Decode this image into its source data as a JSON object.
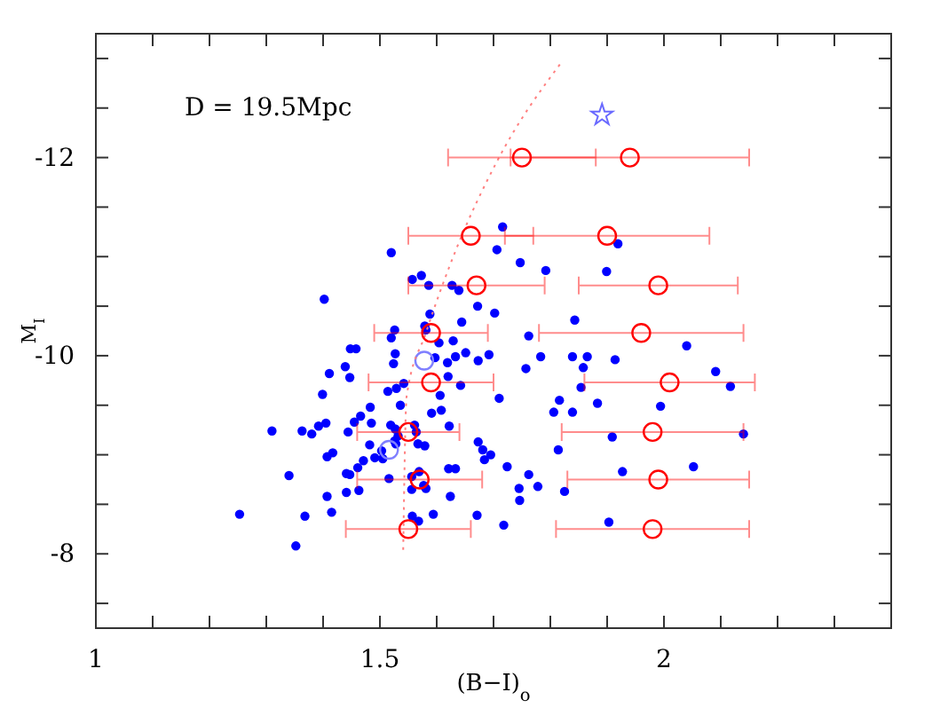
{
  "chart_data": {
    "type": "scatter",
    "xlabel": "(B−I)$_{o}$",
    "ylabel": "M$_{I}$",
    "annotations": [
      "D = 19.5Mpc"
    ],
    "xlim": [
      1,
      2.4
    ],
    "ylim": [
      -7.25,
      -13.25
    ],
    "xticks": [
      1,
      {
        "value": 1.1,
        "label": null
      },
      {
        "value": 1.2,
        "label": null
      },
      {
        "value": 1.3,
        "label": null
      },
      {
        "value": 1.4,
        "label": null
      },
      1.5,
      {
        "value": 1.6,
        "label": null
      },
      {
        "value": 1.7,
        "label": null
      },
      {
        "value": 1.8,
        "label": null
      },
      {
        "value": 1.9,
        "label": null
      },
      2,
      {
        "value": 2.1,
        "label": null
      },
      {
        "value": 2.2,
        "label": null
      },
      {
        "value": 2.3,
        "label": null
      }
    ],
    "yticks": [
      {
        "value": -7.5,
        "label": null
      },
      -8,
      {
        "value": -8.5,
        "label": null
      },
      {
        "value": -9,
        "label": null
      },
      {
        "value": -9.5,
        "label": null
      },
      -10,
      {
        "value": -10.5,
        "label": null
      },
      {
        "value": -11,
        "label": null
      },
      {
        "value": -11.5,
        "label": null
      },
      -12,
      {
        "value": -12.5,
        "label": null
      },
      {
        "value": -13,
        "label": null
      }
    ],
    "grid": false,
    "series": [
      {
        "marker": "circle",
        "color": "#0000ff",
        "x": [
          1.52,
          1.557,
          1.573,
          1.586,
          1.402,
          1.588,
          1.579,
          1.581,
          1.526,
          1.52,
          1.604,
          1.527,
          1.524,
          1.448,
          1.458,
          1.439,
          1.411,
          1.447,
          1.514,
          1.529,
          1.542,
          1.597,
          1.606,
          1.399,
          1.483,
          1.466,
          1.455,
          1.536,
          1.591,
          1.608,
          1.485,
          1.519,
          1.527,
          1.532,
          1.526,
          1.528,
          1.561,
          1.564,
          1.579,
          1.567,
          1.444,
          1.405,
          1.392,
          1.38,
          1.363,
          1.31,
          1.482,
          1.503,
          1.471,
          1.491,
          1.505,
          1.417,
          1.407,
          1.441,
          1.447,
          1.461,
          1.516,
          1.556,
          1.569,
          1.577,
          1.581,
          1.556,
          1.441,
          1.463,
          1.407,
          1.34,
          1.253,
          1.368,
          1.415,
          1.557,
          1.568,
          1.594,
          1.352,
          1.619,
          1.706,
          1.747,
          1.792,
          1.899,
          1.627,
          1.639,
          1.672,
          1.702,
          1.843,
          1.644,
          1.762,
          2.04,
          1.629,
          1.651,
          1.633,
          1.673,
          1.692,
          1.783,
          1.839,
          1.865,
          1.914,
          1.858,
          1.757,
          2.091,
          1.62,
          1.642,
          1.854,
          2.117,
          1.71,
          1.816,
          1.883,
          1.806,
          1.839,
          1.994,
          1.622,
          1.673,
          1.681,
          1.695,
          1.684,
          1.909,
          2.14,
          1.814,
          1.724,
          1.762,
          1.778,
          1.745,
          1.825,
          1.927,
          2.052,
          1.746,
          1.621,
          1.633,
          1.624,
          1.671,
          1.718,
          1.903,
          1.716,
          1.919
        ],
        "values": [
          -11.04,
          -10.77,
          -10.81,
          -10.71,
          -10.57,
          -10.42,
          -10.3,
          -10.26,
          -10.26,
          -10.18,
          -10.13,
          -10.02,
          -9.92,
          -10.07,
          -10.07,
          -9.89,
          -9.82,
          -9.78,
          -9.64,
          -9.67,
          -9.72,
          -9.98,
          -9.6,
          -9.61,
          -9.48,
          -9.39,
          -9.33,
          -9.5,
          -9.42,
          -9.45,
          -9.32,
          -9.3,
          -9.26,
          -9.19,
          -9.14,
          -9.11,
          -9.3,
          -9.23,
          -9.09,
          -9.11,
          -9.23,
          -9.32,
          -9.29,
          -9.21,
          -9.24,
          -9.24,
          -9.1,
          -9.04,
          -8.94,
          -8.97,
          -8.96,
          -9.02,
          -8.98,
          -8.81,
          -8.8,
          -8.87,
          -8.76,
          -8.78,
          -8.83,
          -8.69,
          -8.66,
          -8.65,
          -8.62,
          -8.64,
          -8.58,
          -8.79,
          -8.4,
          -8.38,
          -8.42,
          -8.38,
          -8.33,
          -8.4,
          -8.08,
          -9.93,
          -11.07,
          -10.94,
          -10.86,
          -10.85,
          -10.71,
          -10.66,
          -10.5,
          -10.43,
          -10.36,
          -10.34,
          -10.2,
          -10.1,
          -10.15,
          -10.03,
          -9.99,
          -9.95,
          -10.01,
          -9.99,
          -9.99,
          -9.99,
          -9.96,
          -9.88,
          -9.87,
          -9.84,
          -9.79,
          -9.7,
          -9.68,
          -9.69,
          -9.57,
          -9.55,
          -9.52,
          -9.43,
          -9.43,
          -9.49,
          -9.29,
          -9.13,
          -9.05,
          -9,
          -8.95,
          -9.18,
          -9.21,
          -9.05,
          -8.88,
          -8.8,
          -8.68,
          -8.66,
          -8.63,
          -8.83,
          -8.88,
          -8.54,
          -8.86,
          -8.86,
          -8.58,
          -8.39,
          -8.29,
          -8.32,
          -11.3,
          -11.13
        ]
      },
      {
        "type": "scatter",
        "marker": "circle",
        "color": "#8080ff",
        "x": [
          1.578,
          1.516
        ],
        "values": [
          -9.95,
          -9.05
        ]
      },
      {
        "type": "scatter",
        "marker": "star",
        "color": "#6a6aff",
        "x": [
          1.891
        ],
        "values": [
          -12.43
        ]
      },
      {
        "type": "line",
        "marker": "none",
        "line_style": "dotted",
        "color": "#ff8080",
        "x": [
          1.541,
          1.547,
          1.581,
          1.634,
          1.706,
          1.822
        ],
        "values": [
          -8.04,
          -9.59,
          -10.23,
          -11.07,
          -11.96,
          -12.98
        ]
      },
      {
        "type": "scatter",
        "marker": "circle",
        "color": "#ff0000",
        "x": [
          1.75,
          1.94,
          1.66,
          1.9,
          1.67,
          1.99,
          1.59,
          1.96,
          1.59,
          2.01,
          1.55,
          1.98,
          1.57,
          1.99,
          1.55,
          1.98
        ],
        "values": [
          -12,
          -12,
          -11.21,
          -11.21,
          -10.71,
          -10.71,
          -10.23,
          -10.23,
          -9.73,
          -9.73,
          -9.23,
          -9.23,
          -8.75,
          -8.75,
          -8.25,
          -8.25
        ],
        "xerrors": [
          0.13,
          0.21,
          0.11,
          0.18,
          0.12,
          0.14,
          0.1,
          0.18,
          0.11,
          0.15,
          0.09,
          0.16,
          0.11,
          0.16,
          0.11,
          0.17
        ]
      }
    ]
  }
}
